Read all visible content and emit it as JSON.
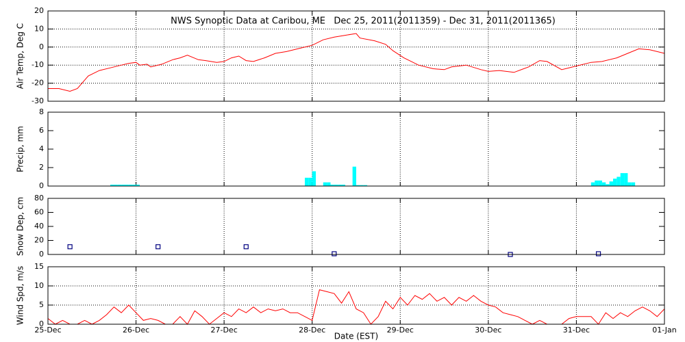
{
  "chart_data": [
    {
      "type": "line",
      "title": "NWS Synoptic Data at Caribou, ME   Dec 25, 2011(2011359) - Dec 31, 2011(2011365)",
      "ylabel": "Air Temp, Deg C",
      "color": "#ff0000",
      "x": [
        0,
        3,
        6,
        8,
        11,
        14,
        17,
        20,
        22,
        24,
        25,
        27,
        28,
        31,
        34,
        36,
        38,
        41,
        43,
        46,
        48,
        50,
        52,
        54,
        56,
        59,
        62,
        65,
        69,
        72,
        75,
        78,
        81,
        84,
        85,
        89,
        92,
        94,
        97,
        101,
        105,
        108,
        110,
        114,
        118,
        120,
        123,
        127,
        131,
        134,
        136,
        140,
        144,
        148,
        151,
        155,
        158,
        161,
        164,
        168
      ],
      "values": [
        -23,
        -23,
        -24.5,
        -23,
        -16,
        -13,
        -11.5,
        -10,
        -9,
        -8.5,
        -10,
        -9.5,
        -11,
        -9.5,
        -7,
        -6,
        -4.5,
        -7,
        -7.5,
        -8.5,
        -8,
        -6,
        -5,
        -7.5,
        -8,
        -6,
        -3.5,
        -2.5,
        -0.5,
        1,
        4,
        5.5,
        6.5,
        7.5,
        5,
        3.5,
        1.5,
        -2,
        -6,
        -10,
        -12,
        -12.5,
        -11,
        -10,
        -12.5,
        -13.5,
        -13,
        -14,
        -11,
        -7.5,
        -8,
        -12.5,
        -10.5,
        -8.5,
        -8,
        -6,
        -3.5,
        -1,
        -1.5,
        -3.5
      ],
      "xlim": [
        0,
        168
      ],
      "xticks": [
        0,
        24,
        48,
        72,
        96,
        120,
        144,
        168
      ],
      "ylim": [
        -30,
        20
      ],
      "yticks": [
        -30,
        -20,
        -10,
        0,
        10,
        20
      ],
      "grid": "both"
    },
    {
      "type": "bar",
      "ylabel": "Precip, mm",
      "color": "#00ffff",
      "x": [
        17,
        18,
        19,
        20,
        21,
        22,
        23,
        24,
        70,
        71,
        72,
        75,
        76,
        77,
        78,
        79,
        80,
        83,
        84,
        85,
        86,
        148,
        149,
        150,
        151,
        152,
        153,
        154,
        155,
        156,
        157,
        158,
        159
      ],
      "values": [
        0.15,
        0.15,
        0.15,
        0.15,
        0.15,
        0.15,
        0.15,
        0.15,
        0.9,
        0.9,
        1.6,
        0.4,
        0.4,
        0.15,
        0.15,
        0.15,
        0.15,
        2.1,
        0.1,
        0.1,
        0.1,
        0.4,
        0.6,
        0.6,
        0.4,
        0.2,
        0.5,
        0.8,
        1.0,
        1.4,
        1.4,
        0.4,
        0.4
      ],
      "xlim": [
        0,
        168
      ],
      "xticks": [
        0,
        24,
        48,
        72,
        96,
        120,
        144,
        168
      ],
      "ylim": [
        0,
        8
      ],
      "yticks": [
        0,
        2,
        4,
        6,
        8
      ],
      "grid": "x"
    },
    {
      "type": "scatter",
      "ylabel": "Snow Dep, cm",
      "color": "#000080",
      "x": [
        6,
        30,
        54,
        78,
        126,
        150
      ],
      "values": [
        11,
        11,
        11,
        1,
        0,
        1
      ],
      "xlim": [
        0,
        168
      ],
      "xticks": [
        0,
        24,
        48,
        72,
        96,
        120,
        144,
        168
      ],
      "ylim": [
        0,
        80
      ],
      "yticks": [
        0,
        20,
        40,
        60,
        80
      ],
      "grid": "x"
    },
    {
      "type": "line",
      "ylabel": "Wind Spd, m/s",
      "xlabel": "Date (EST)",
      "color": "#ff0000",
      "x": [
        0,
        2,
        4,
        6,
        8,
        10,
        12,
        14,
        16,
        18,
        20,
        22,
        24,
        26,
        28,
        30,
        32,
        34,
        36,
        38,
        40,
        42,
        44,
        46,
        48,
        50,
        52,
        54,
        56,
        58,
        60,
        62,
        64,
        66,
        68,
        70,
        72,
        74,
        76,
        78,
        80,
        82,
        84,
        86,
        88,
        90,
        92,
        94,
        96,
        98,
        100,
        102,
        104,
        106,
        108,
        110,
        112,
        114,
        116,
        118,
        120,
        122,
        124,
        126,
        128,
        130,
        132,
        134,
        136,
        138,
        140,
        142,
        144,
        146,
        148,
        150,
        152,
        154,
        156,
        158,
        160,
        162,
        164,
        166,
        168
      ],
      "values": [
        1.5,
        0,
        1,
        0,
        0,
        1,
        0,
        1,
        2.5,
        4.5,
        3,
        5,
        3,
        1,
        1.5,
        1,
        0,
        0,
        2,
        0,
        3.5,
        2,
        0,
        1.5,
        3,
        2,
        4,
        3,
        4.5,
        3,
        4,
        3.5,
        4,
        3,
        3,
        2,
        1,
        9,
        8.5,
        8,
        5.5,
        8.5,
        4,
        3,
        0,
        2,
        6,
        4,
        7,
        5,
        7.5,
        6.5,
        8,
        6,
        7,
        5,
        7,
        6,
        7.5,
        6,
        5,
        4.5,
        3,
        2.5,
        2,
        1,
        0,
        1,
        0,
        0,
        0,
        1.5,
        2,
        2,
        2,
        0,
        3,
        1.5,
        3,
        2,
        3.5,
        4.5,
        3.5,
        2,
        4
      ],
      "xlim": [
        0,
        168
      ],
      "xticks": [
        {
          "value": 0,
          "label": "25-Dec"
        },
        {
          "value": 24,
          "label": "26-Dec"
        },
        {
          "value": 48,
          "label": "27-Dec"
        },
        {
          "value": 72,
          "label": "28-Dec"
        },
        {
          "value": 96,
          "label": "29-Dec"
        },
        {
          "value": 120,
          "label": "30-Dec"
        },
        {
          "value": 144,
          "label": "31-Dec"
        },
        {
          "value": 168,
          "label": "01-Jan"
        }
      ],
      "ylim": [
        0,
        15
      ],
      "yticks": [
        0,
        5,
        10,
        15
      ],
      "grid": "both"
    }
  ]
}
